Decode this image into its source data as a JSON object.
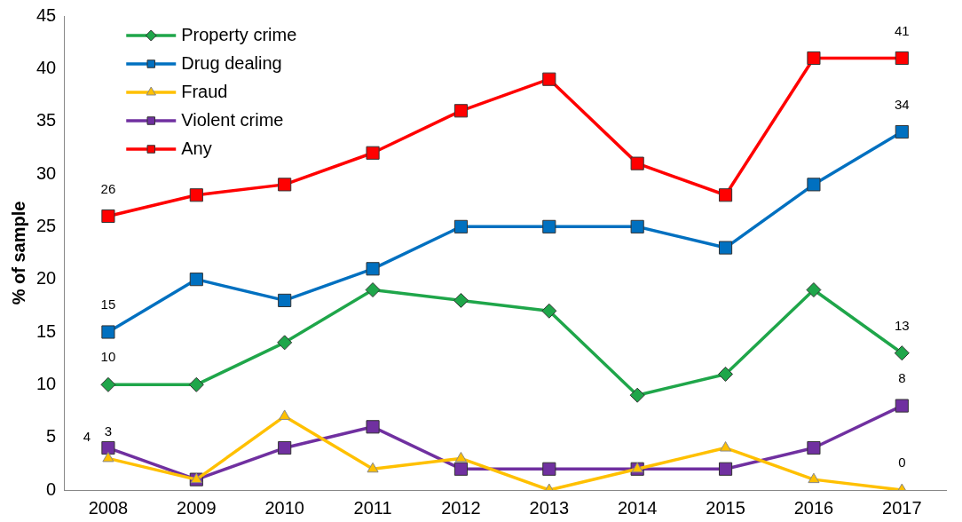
{
  "chart_data": {
    "type": "line",
    "ylabel": "% of sample",
    "categories": [
      "2008",
      "2009",
      "2010",
      "2011",
      "2012",
      "2013",
      "2014",
      "2015",
      "2016",
      "2017"
    ],
    "series": [
      {
        "name": "Property crime",
        "color": "#1fa64a",
        "marker": "diamond",
        "values": [
          10,
          10,
          14,
          19,
          18,
          17,
          9,
          11,
          19,
          13
        ],
        "value_labels": [
          "10",
          null,
          null,
          null,
          null,
          null,
          null,
          null,
          null,
          "13"
        ]
      },
      {
        "name": "Drug dealing",
        "color": "#0070c0",
        "marker": "square",
        "values": [
          15,
          20,
          18,
          21,
          25,
          25,
          25,
          23,
          29,
          34
        ],
        "value_labels": [
          "15",
          null,
          null,
          null,
          null,
          null,
          null,
          null,
          null,
          "34"
        ]
      },
      {
        "name": "Fraud",
        "color": "#ffc000",
        "marker": "triangle",
        "values": [
          3,
          1,
          7,
          2,
          3,
          0,
          2,
          4,
          1,
          0
        ],
        "value_labels": [
          "3",
          null,
          null,
          null,
          null,
          null,
          null,
          null,
          null,
          "0"
        ]
      },
      {
        "name": "Violent crime",
        "color": "#7030a0",
        "marker": "square",
        "values": [
          4,
          1,
          4,
          6,
          2,
          2,
          2,
          2,
          4,
          8
        ],
        "value_labels": [
          "4",
          null,
          null,
          null,
          null,
          null,
          null,
          null,
          null,
          "8"
        ]
      },
      {
        "name": "Any",
        "color": "#ff0000",
        "marker": "square",
        "values": [
          26,
          28,
          29,
          32,
          36,
          39,
          31,
          28,
          41,
          41
        ],
        "value_labels": [
          "26",
          null,
          null,
          null,
          null,
          null,
          null,
          null,
          null,
          "41"
        ]
      }
    ],
    "ylim": [
      0,
      45
    ],
    "yticks": [
      0,
      5,
      10,
      15,
      20,
      25,
      30,
      35,
      40,
      45
    ],
    "grid": false,
    "legend": "top left",
    "line_style": "solid"
  }
}
